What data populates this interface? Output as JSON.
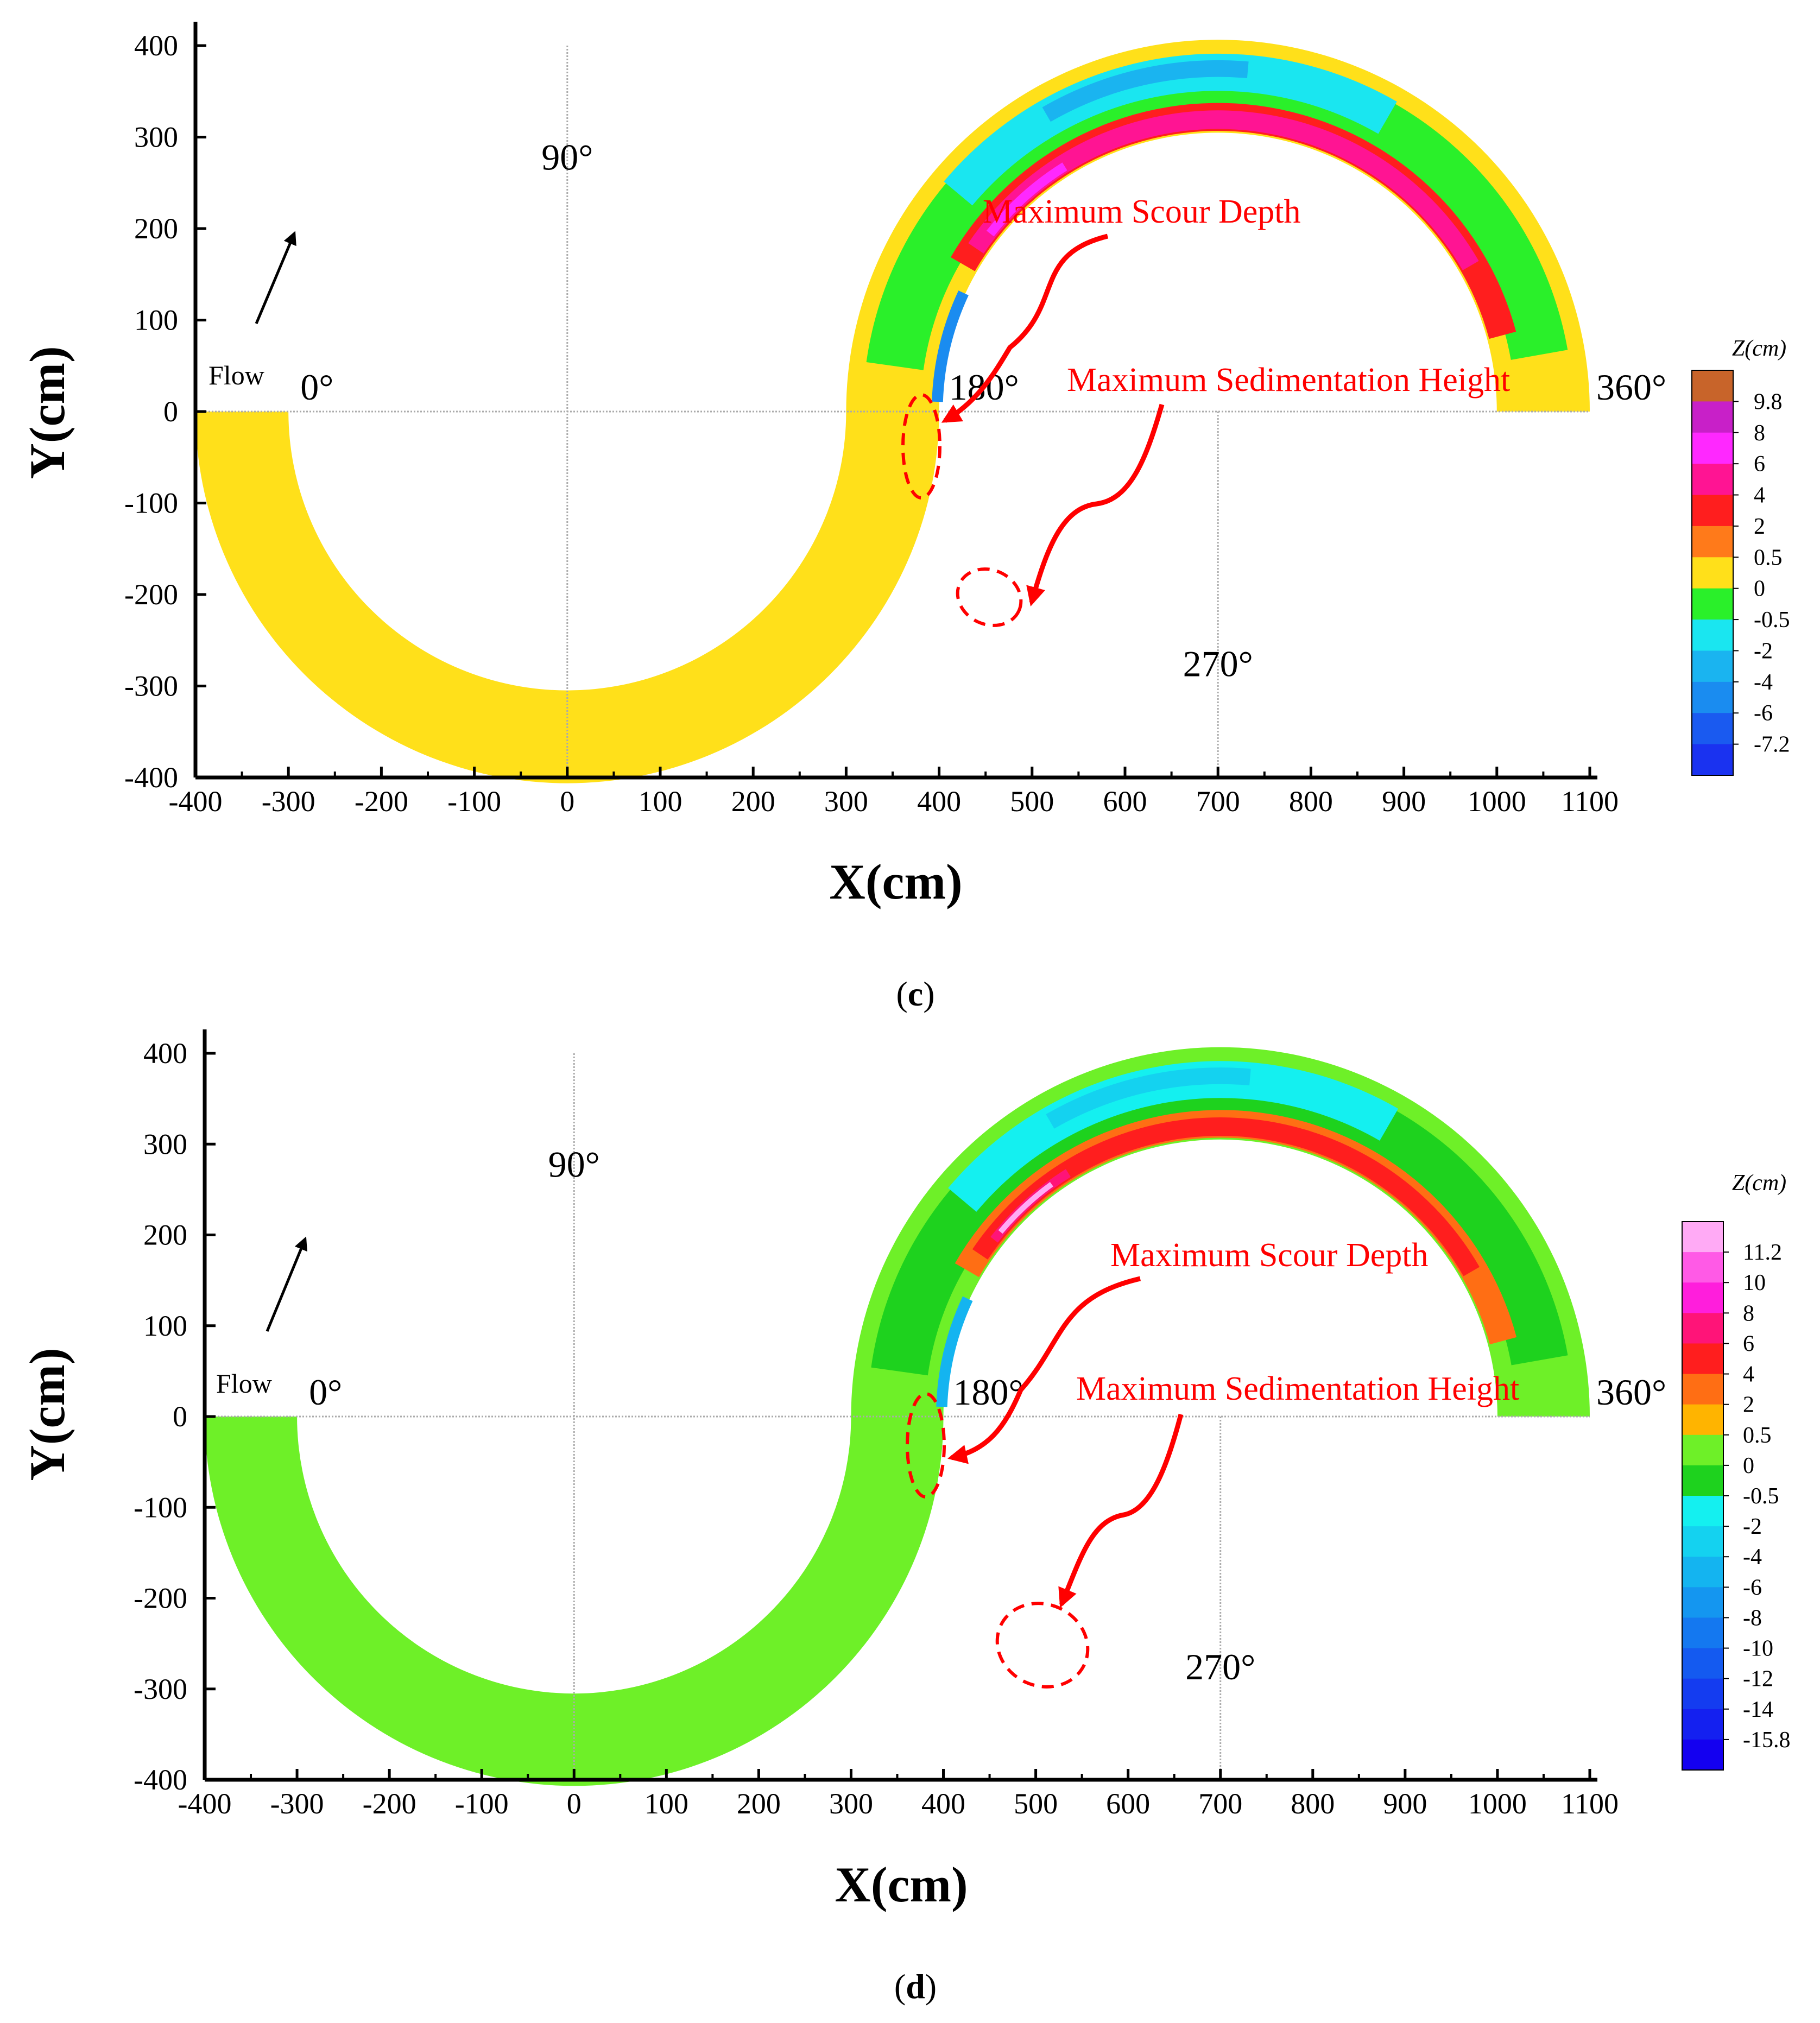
{
  "chart_data": [
    {
      "type": "heatmap",
      "panel_label": "c",
      "xlabel": "X(cm)",
      "ylabel": "Y(cm)",
      "xlim": [
        -400,
        1100
      ],
      "ylim": [
        -400,
        400
      ],
      "x_ticks": [
        -400,
        -300,
        -200,
        -100,
        0,
        100,
        200,
        300,
        400,
        500,
        600,
        700,
        800,
        900,
        1000,
        1100
      ],
      "y_ticks": [
        400,
        300,
        200,
        100,
        0,
        -100,
        -200,
        -300,
        -400
      ],
      "colorbar_title": "Z(cm)",
      "colorbar_levels": [
        "9.8",
        "8",
        "6",
        "4",
        "2",
        "0.5",
        "0",
        "-0.5",
        "-2",
        "-4",
        "-6",
        "-7.2"
      ],
      "colorbar_colors": [
        "#c8642a",
        "#c820c8",
        "#ff28ff",
        "#ff1493",
        "#ff1e1e",
        "#ff7a1a",
        "#ffe01a",
        "#2af02a",
        "#1ae6f0",
        "#1ab4f0",
        "#1a8cf0",
        "#1a5af0",
        "#1a32f0"
      ],
      "angle_labels": [
        "0°",
        "90°",
        "180°",
        "270°",
        "360°"
      ],
      "flow_label": "Flow",
      "annotations": [
        "Maximum Scour Depth",
        "Maximum Sedimentation Height"
      ]
    },
    {
      "type": "heatmap",
      "panel_label": "d",
      "xlabel": "X(cm)",
      "ylabel": "Y(cm)",
      "xlim": [
        -400,
        1100
      ],
      "ylim": [
        -400,
        400
      ],
      "x_ticks": [
        -400,
        -300,
        -200,
        -100,
        0,
        100,
        200,
        300,
        400,
        500,
        600,
        700,
        800,
        900,
        1000,
        1100
      ],
      "y_ticks": [
        400,
        300,
        200,
        100,
        0,
        -100,
        -200,
        -300,
        -400
      ],
      "colorbar_title": "Z(cm)",
      "colorbar_levels": [
        "11.2",
        "10",
        "8",
        "6",
        "4",
        "2",
        "0.5",
        "0",
        "-0.5",
        "-2",
        "-4",
        "-6",
        "-8",
        "-10",
        "-12",
        "-14",
        "-15.8"
      ],
      "colorbar_colors": [
        "#ffaaf5",
        "#ff5ae6",
        "#ff1edc",
        "#ff1478",
        "#ff1e1e",
        "#ff6e14",
        "#ffb400",
        "#6ef028",
        "#1ed21e",
        "#14f0f0",
        "#14d2f0",
        "#14b4f0",
        "#1496f0",
        "#1478f0",
        "#145af0",
        "#143cf0",
        "#1420f0",
        "#1400f0"
      ],
      "angle_labels": [
        "0°",
        "90°",
        "180°",
        "270°",
        "360°"
      ],
      "flow_label": "Flow",
      "annotations": [
        "Maximum Scour Depth",
        "Maximum Sedimentation Height"
      ]
    }
  ]
}
